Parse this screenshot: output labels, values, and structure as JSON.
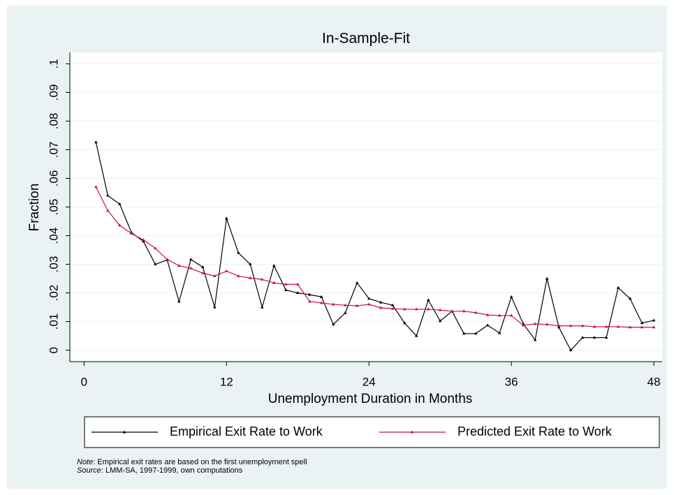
{
  "chart_data": {
    "type": "line",
    "title": "In-Sample-Fit",
    "x_label": "Unemployment Duration in Months",
    "y_label": "Fraction",
    "x": [
      1,
      2,
      3,
      4,
      5,
      6,
      7,
      8,
      9,
      10,
      11,
      12,
      13,
      14,
      15,
      16,
      17,
      18,
      19,
      20,
      21,
      22,
      23,
      24,
      25,
      26,
      27,
      28,
      29,
      30,
      31,
      32,
      33,
      34,
      35,
      36,
      37,
      38,
      39,
      40,
      41,
      42,
      43,
      44,
      45,
      46,
      47,
      48
    ],
    "series": [
      {
        "name": "Empirical Exit Rate to Work",
        "color": "#000000",
        "values": [
          0.0726,
          0.054,
          0.051,
          0.041,
          0.038,
          0.03,
          0.0315,
          0.017,
          0.0317,
          0.029,
          0.015,
          0.046,
          0.034,
          0.03,
          0.015,
          0.0295,
          0.021,
          0.02,
          0.0194,
          0.0186,
          0.009,
          0.013,
          0.0235,
          0.018,
          0.0167,
          0.0157,
          0.0095,
          0.005,
          0.0175,
          0.0102,
          0.0136,
          0.0058,
          0.0058,
          0.0087,
          0.006,
          0.0186,
          0.0092,
          0.0036,
          0.025,
          0.008,
          0,
          0.0044,
          0.0044,
          0.0044,
          0.0218,
          0.018,
          0.0095,
          0.0104
        ]
      },
      {
        "name": "Predicted Exit Rate to Work",
        "color": "#c8103e",
        "values": [
          0.057,
          0.0487,
          0.0436,
          0.0407,
          0.0385,
          0.0356,
          0.0317,
          0.0295,
          0.0286,
          0.0269,
          0.0259,
          0.0276,
          0.0259,
          0.0252,
          0.0247,
          0.0235,
          0.023,
          0.023,
          0.017,
          0.0165,
          0.016,
          0.0157,
          0.0155,
          0.016,
          0.0148,
          0.0145,
          0.0143,
          0.0143,
          0.0143,
          0.014,
          0.0136,
          0.0136,
          0.0131,
          0.0123,
          0.0121,
          0.0121,
          0.0087,
          0.0092,
          0.009,
          0.0085,
          0.0085,
          0.0085,
          0.0082,
          0.0082,
          0.0082,
          0.008,
          0.008,
          0.008
        ]
      }
    ],
    "xlim": [
      -1.2,
      48.7
    ],
    "xticks": [
      0,
      12,
      24,
      36,
      48
    ],
    "ylim": [
      -0.004,
      0.104
    ],
    "yticks": [
      0,
      {
        "value": 0.01,
        "label": ".01"
      },
      {
        "value": 0.02,
        "label": ".02"
      },
      {
        "value": 0.03,
        "label": ".03"
      },
      {
        "value": 0.04,
        "label": ".04"
      },
      {
        "value": 0.05,
        "label": ".05"
      },
      {
        "value": 0.06,
        "label": ".06"
      },
      {
        "value": 0.07,
        "label": ".07"
      },
      {
        "value": 0.08,
        "label": ".08"
      },
      {
        "value": 0.09,
        "label": ".09"
      },
      {
        "value": 0.1,
        "label": ".1"
      }
    ],
    "grid": true,
    "legend": "bottom",
    "notes": [
      {
        "lead": "Note",
        "text": ": Empirical exit rates are based on the first unemployment spell"
      },
      {
        "lead": "Source",
        "text": ": LMM-SA, 1997-1999, own computations"
      }
    ]
  }
}
